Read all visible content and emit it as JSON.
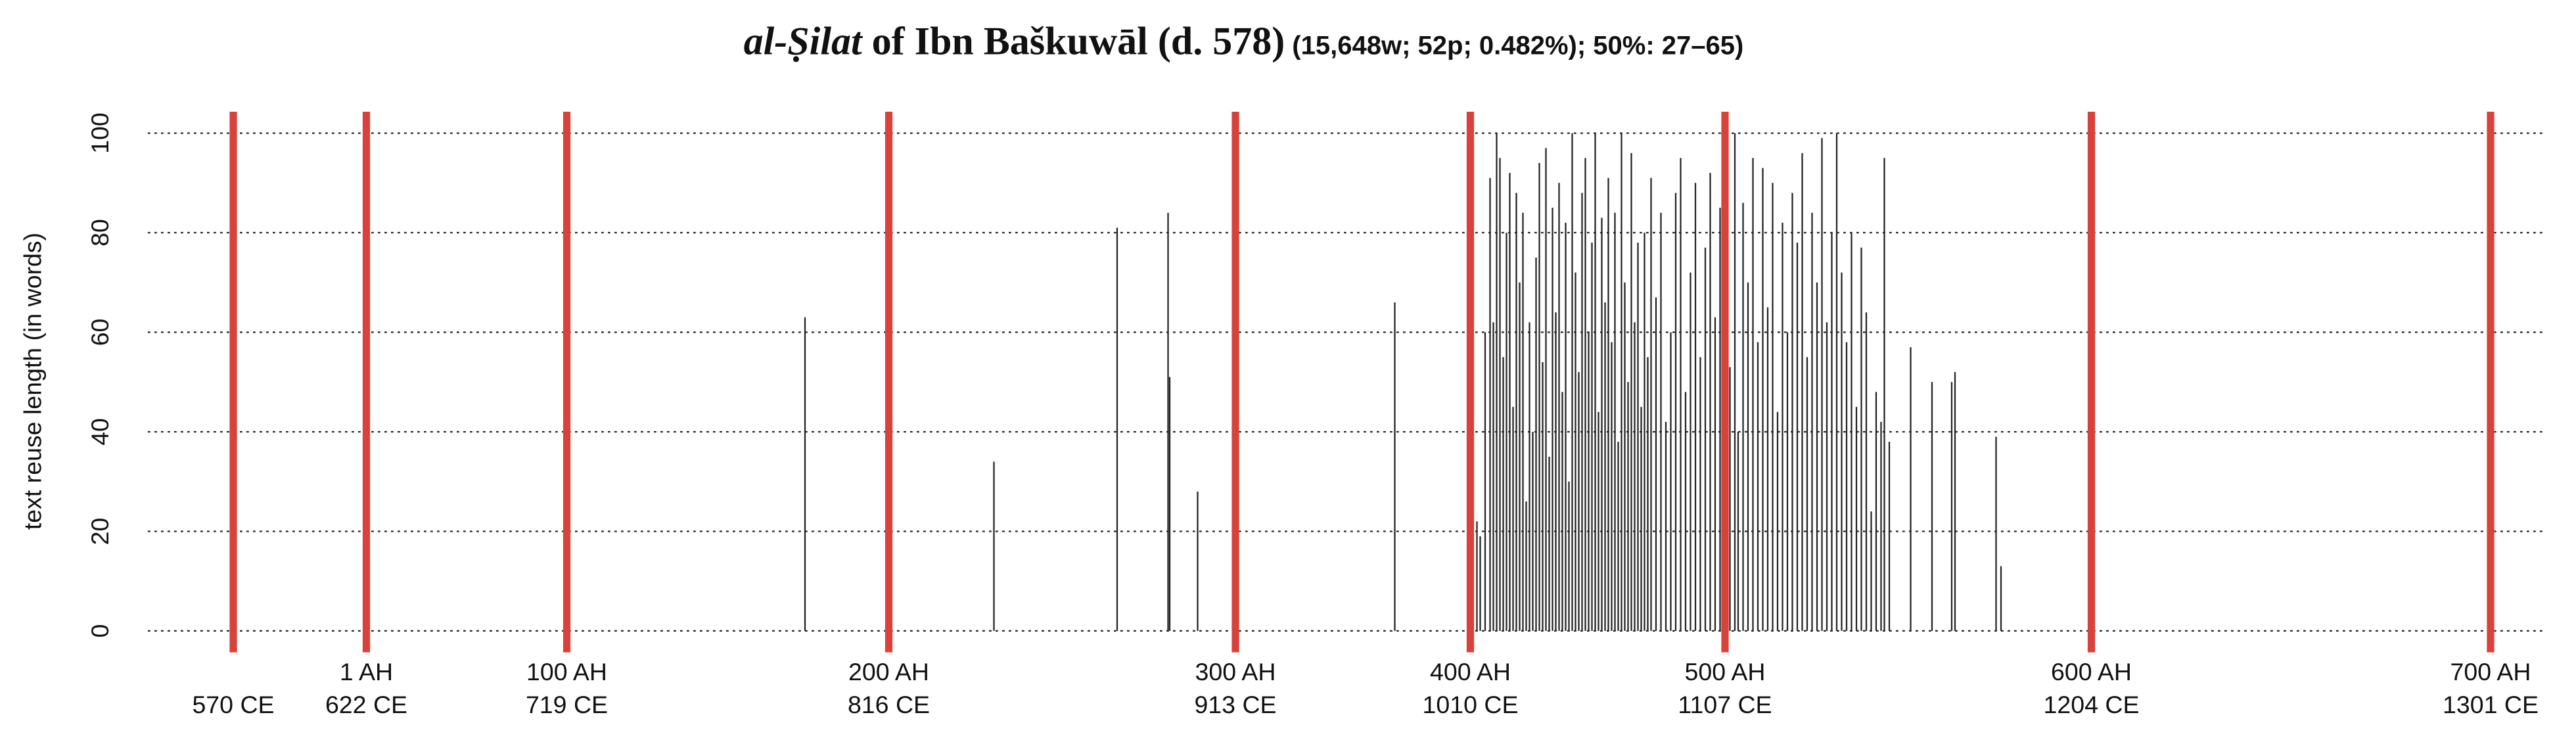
{
  "chart_data": {
    "type": "spike",
    "title": {
      "italic": "al-Ṣilat",
      "main": " of Ibn Baškuwāl (d. 578)",
      "stats": " (15,648w; 52p; 0.482%); 50%: 27–65)"
    },
    "y_label": "text reuse length (in words)",
    "xlim": [
      90,
      1548
    ],
    "ylim": [
      -4.3,
      104.3
    ],
    "yticks": [
      0,
      20,
      40,
      60,
      80,
      100
    ],
    "grid": true,
    "marker_color": "#d9413b",
    "color": "#222222",
    "xticks": [
      {
        "value": 142,
        "ce": "570 CE"
      },
      {
        "value": 223,
        "ah": "1 AH",
        "ce": "622 CE"
      },
      {
        "value": 345,
        "ah": "100 AH",
        "ce": "719 CE"
      },
      {
        "value": 541,
        "ah": "200 AH",
        "ce": "816 CE"
      },
      {
        "value": 752,
        "ah": "300 AH",
        "ce": "913 CE"
      },
      {
        "value": 895,
        "ah": "400 AH",
        "ce": "1010 CE"
      },
      {
        "value": 1050,
        "ah": "500 AH",
        "ce": "1107 CE"
      },
      {
        "value": 1273,
        "ah": "600 AH",
        "ce": "1204 CE"
      },
      {
        "value": 1516,
        "ah": "700 AH",
        "ce": "1301 CE"
      }
    ],
    "x": [
      490,
      605,
      680,
      711,
      712,
      729,
      849,
      899,
      901,
      904,
      907,
      909,
      911,
      913,
      915,
      917,
      919,
      921,
      923,
      925,
      927,
      929,
      931,
      933,
      935,
      937,
      939,
      941,
      943,
      945,
      947,
      949,
      951,
      953,
      955,
      957,
      959,
      961,
      963,
      965,
      967,
      969,
      971,
      973,
      975,
      977,
      979,
      981,
      983,
      985,
      987,
      989,
      991,
      993,
      995,
      997,
      999,
      1001,
      1003,
      1005,
      1008,
      1011,
      1014,
      1017,
      1020,
      1023,
      1026,
      1029,
      1032,
      1035,
      1038,
      1041,
      1044,
      1047,
      1050,
      1053,
      1056,
      1058,
      1061,
      1064,
      1067,
      1070,
      1073,
      1076,
      1079,
      1082,
      1085,
      1088,
      1091,
      1094,
      1097,
      1100,
      1103,
      1106,
      1109,
      1112,
      1115,
      1118,
      1121,
      1124,
      1127,
      1130,
      1133,
      1136,
      1139,
      1142,
      1145,
      1147,
      1150,
      1163,
      1176,
      1188,
      1190,
      1215,
      1218
    ],
    "values": [
      63,
      34,
      81,
      84,
      51,
      28,
      66,
      22,
      19,
      60,
      91,
      62,
      100,
      95,
      55,
      80,
      92,
      45,
      88,
      70,
      84,
      26,
      62,
      40,
      75,
      94,
      54,
      97,
      35,
      85,
      64,
      90,
      48,
      82,
      30,
      100,
      72,
      52,
      88,
      95,
      60,
      78,
      100,
      44,
      83,
      66,
      91,
      58,
      84,
      38,
      100,
      70,
      50,
      96,
      62,
      78,
      45,
      80,
      55,
      91,
      67,
      84,
      42,
      60,
      88,
      95,
      48,
      72,
      90,
      55,
      77,
      92,
      63,
      85,
      75,
      53,
      100,
      40,
      86,
      70,
      95,
      58,
      93,
      65,
      90,
      44,
      82,
      60,
      88,
      78,
      96,
      55,
      84,
      70,
      99,
      62,
      80,
      100,
      72,
      58,
      80,
      45,
      77,
      64,
      24,
      48,
      42,
      95,
      38,
      57,
      50,
      50,
      52,
      39,
      13
    ]
  }
}
